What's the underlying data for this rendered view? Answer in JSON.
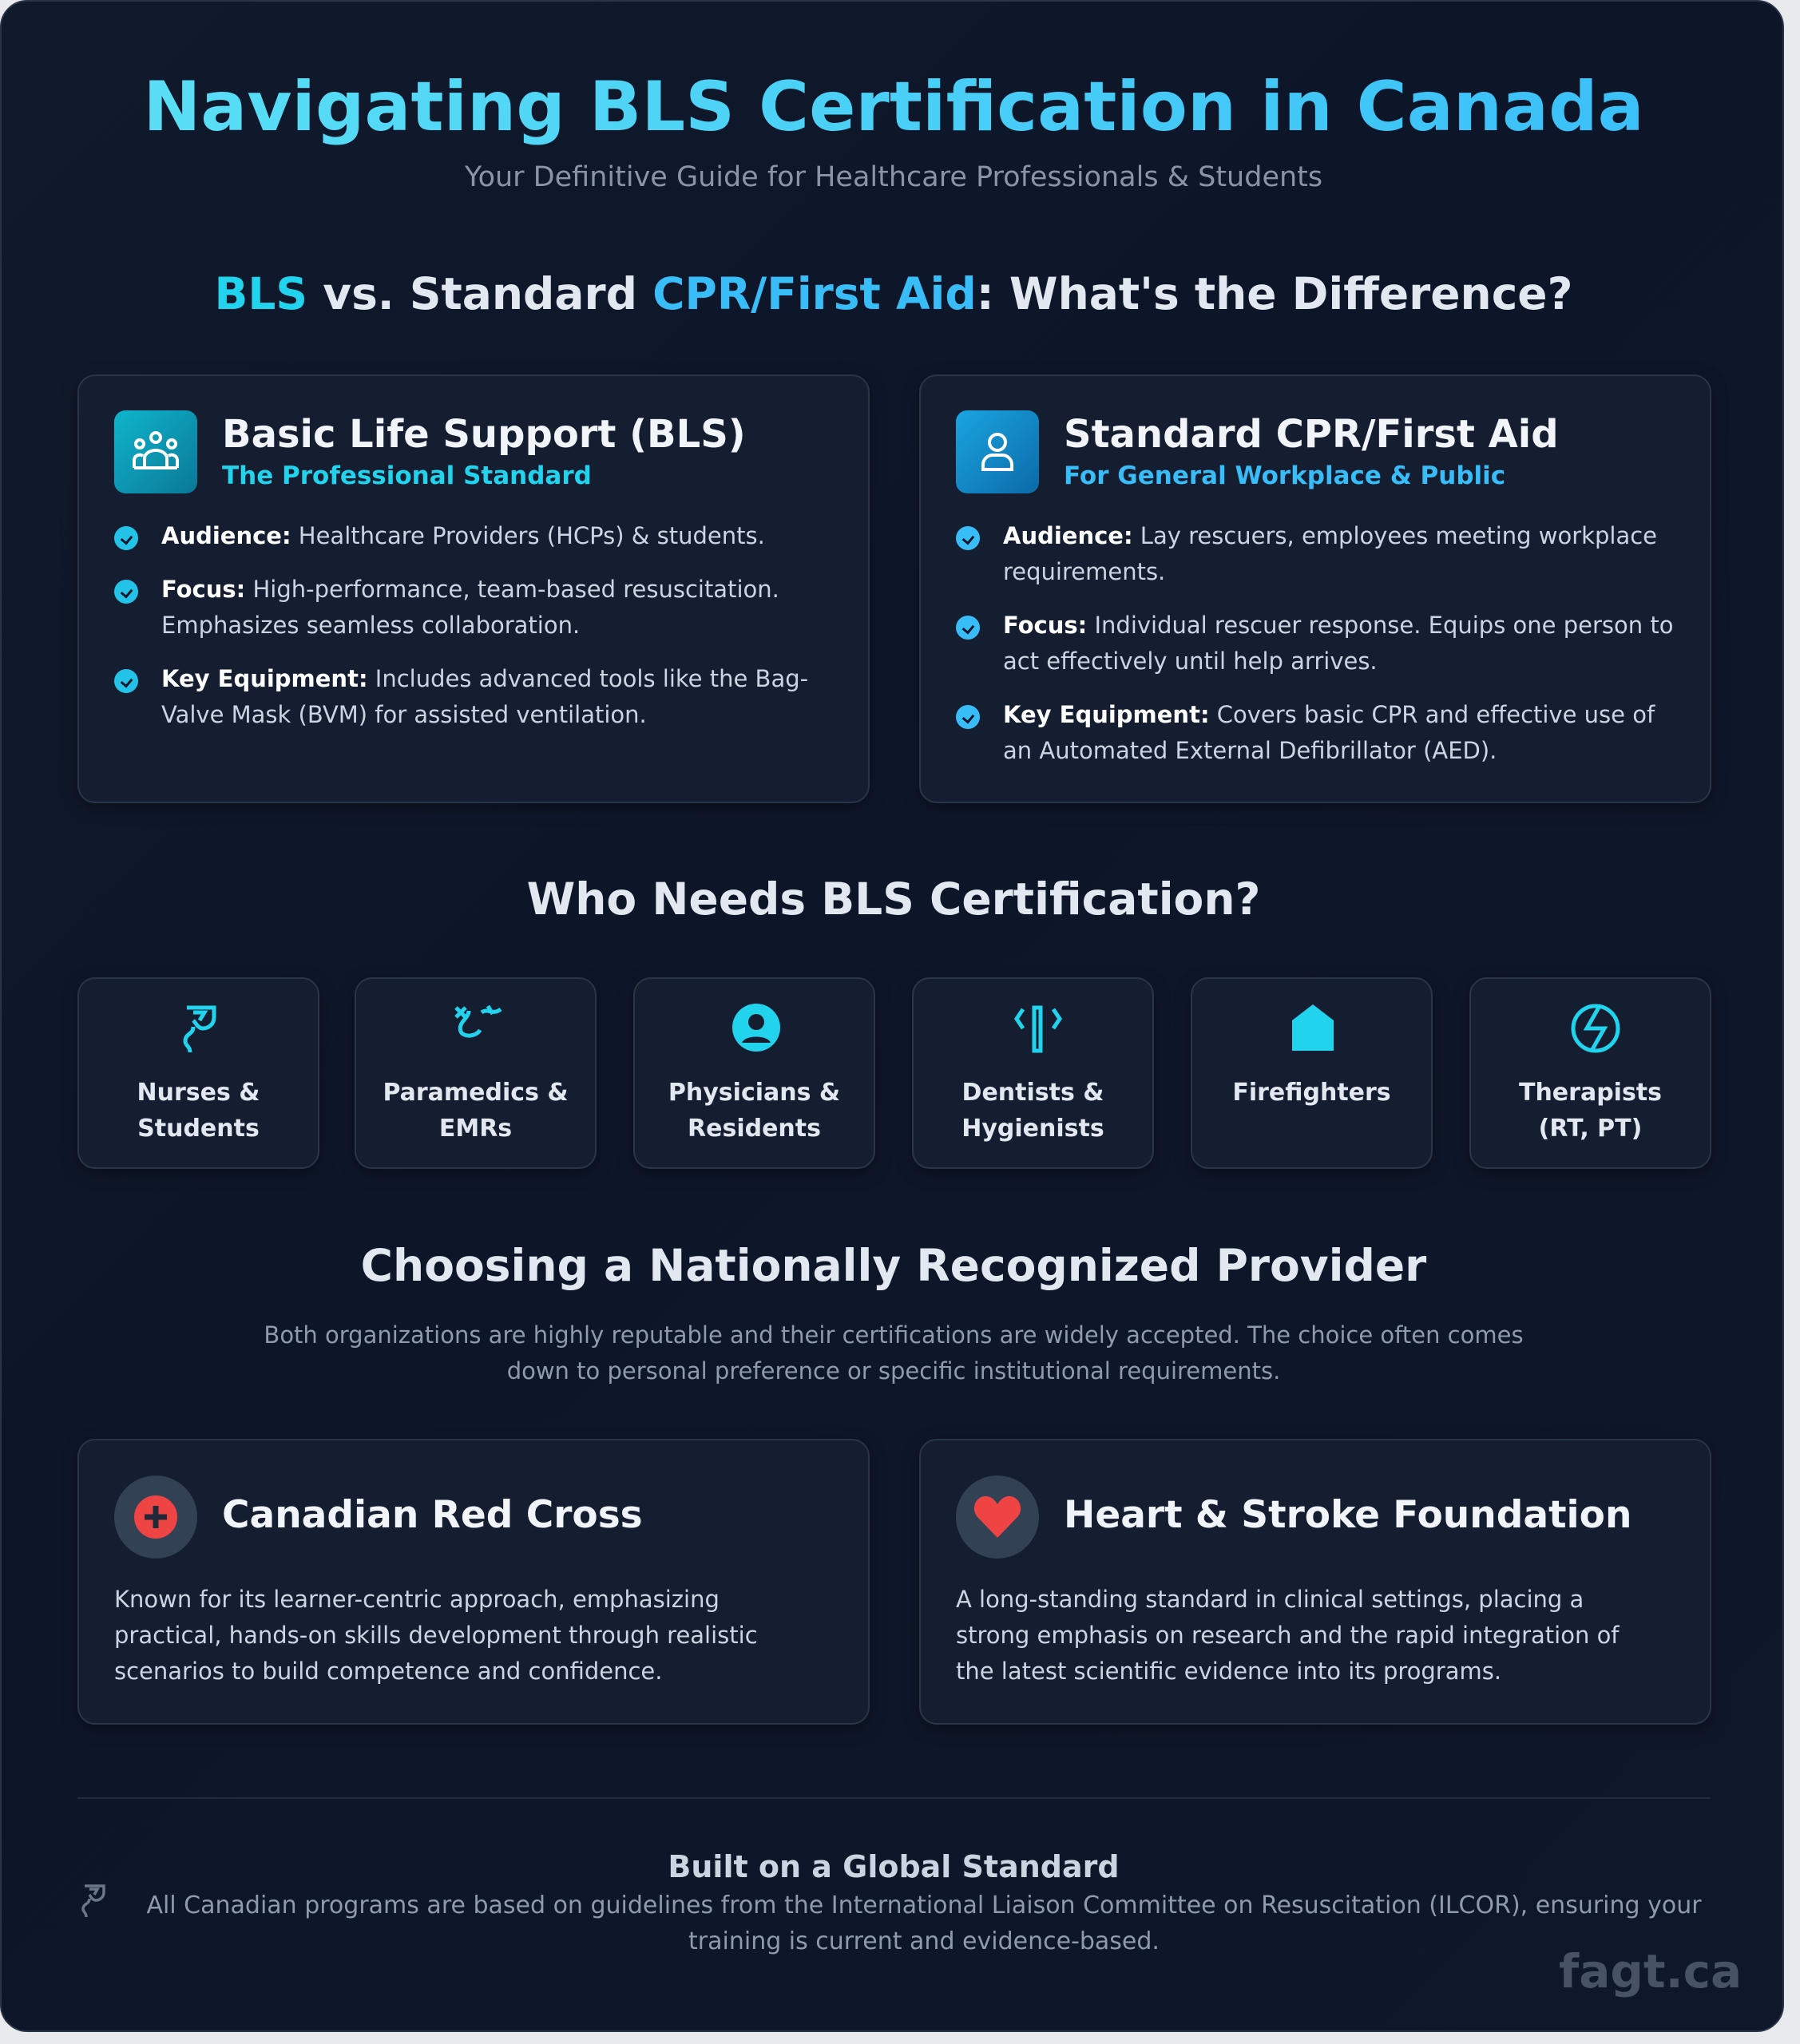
{
  "header": {
    "title": "Navigating BLS Certification in Canada",
    "subtitle": "Your Definitive Guide for Healthcare Professionals & Students"
  },
  "comparison": {
    "heading": {
      "part1": "BLS",
      "part2": " vs. Standard ",
      "part3": "CPR/First Aid",
      "part4": ": What's the Difference?"
    },
    "cards": [
      {
        "icon": "users-group-icon",
        "title": "Basic Life Support (BLS)",
        "subtitle": "The Professional Standard",
        "items": [
          {
            "label": "Audience:",
            "text": " Healthcare Providers (HCPs) & students."
          },
          {
            "label": "Focus:",
            "text": " High-performance, team-based resuscitation. Emphasizes seamless collaboration."
          },
          {
            "label": "Key Equipment:",
            "text": " Includes advanced tools like the Bag-Valve Mask (BVM) for assisted ventilation."
          }
        ]
      },
      {
        "icon": "user-icon",
        "title": "Standard CPR/First Aid",
        "subtitle": "For General Workplace & Public",
        "items": [
          {
            "label": "Audience:",
            "text": " Lay rescuers, employees meeting workplace requirements."
          },
          {
            "label": "Focus:",
            "text": " Individual rescuer response. Equips one person to act effectively until help arrives."
          },
          {
            "label": "Key Equipment:",
            "text": " Covers basic CPR and effective use of an Automated External Defibrillator (AED)."
          }
        ]
      }
    ]
  },
  "who": {
    "heading": "Who Needs BLS Certification?",
    "roles": [
      {
        "icon": "stethoscope-icon",
        "line1": "Nurses &",
        "line2": "Students"
      },
      {
        "icon": "ambulance-icon",
        "line1": "Paramedics &",
        "line2": "EMRs"
      },
      {
        "icon": "user-doctor-icon",
        "line1": "Physicians &",
        "line2": "Residents"
      },
      {
        "icon": "tooth-icon",
        "line1": "Dentists &",
        "line2": "Hygienists"
      },
      {
        "icon": "fire-icon",
        "line1": "Firefighters",
        "line2": ""
      },
      {
        "icon": "lungs-icon",
        "line1": "Therapists",
        "line2": "(RT, PT)"
      }
    ]
  },
  "providers": {
    "heading": "Choosing a Nationally Recognized Provider",
    "intro": "Both organizations are highly reputable and their certifications are widely accepted. The choice often comes down to personal preference or specific institutional requirements.",
    "items": [
      {
        "icon": "red-cross-icon",
        "name": "Canadian Red Cross",
        "desc": "Known for its learner-centric approach, emphasizing practical, hands-on skills development through realistic scenarios to build competence and confidence."
      },
      {
        "icon": "heart-icon",
        "name": "Heart & Stroke Foundation",
        "desc": "A long-standing standard in clinical settings, placing a strong emphasis on research and the rapid integration of the latest scientific evidence into its programs."
      }
    ]
  },
  "footer": {
    "heading": "Built on a Global Standard",
    "text": "All Canadian programs are based on guidelines from the International Liaison Committee on Resuscitation (ILCOR), ensuring your training is current and evidence-based.",
    "watermark": "fagt.ca"
  },
  "colors": {
    "accent_cyan": "#22d3ee",
    "accent_blue": "#38bdf8",
    "red": "#ef4444",
    "background": "#0f172a"
  }
}
